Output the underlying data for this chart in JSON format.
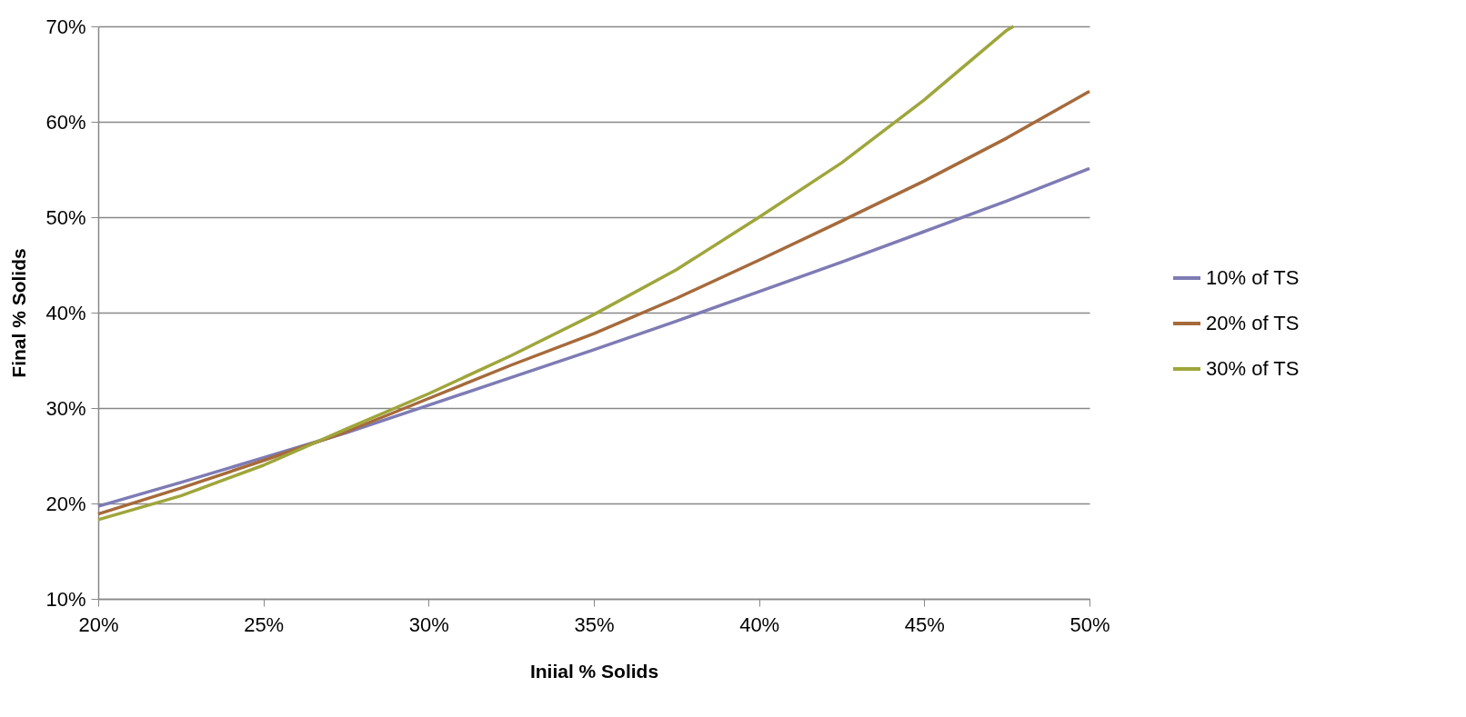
{
  "chart_data": {
    "type": "line",
    "xlabel": "Iniial % Solids",
    "ylabel": "Final % Solids",
    "x": [
      20,
      22.5,
      25,
      27.5,
      30,
      32.5,
      35,
      37.5,
      40,
      42.5,
      45,
      47.5,
      50
    ],
    "series": [
      {
        "name": "10% of TS",
        "color": "#7e7bb5",
        "values": [
          19.7,
          22.2,
          24.8,
          27.4,
          30.3,
          33.2,
          36.1,
          39.1,
          42.2,
          45.3,
          48.5,
          51.7,
          55.1
        ]
      },
      {
        "name": "20% of TS",
        "color": "#a66a3b",
        "values": [
          18.9,
          21.6,
          24.5,
          27.5,
          31.0,
          34.5,
          37.8,
          41.5,
          45.5,
          49.6,
          53.8,
          58.3,
          63.2
        ]
      },
      {
        "name": "30% of TS",
        "color": "#9fa63b",
        "x": [
          20,
          22.5,
          25,
          27.5,
          30,
          32.5,
          35,
          37.5,
          40,
          42.5,
          45,
          47.5,
          47.7
        ],
        "values": [
          18.3,
          20.8,
          24.0,
          27.8,
          31.5,
          35.5,
          39.8,
          44.5,
          50.0,
          55.7,
          62.3,
          69.6,
          70
        ]
      }
    ],
    "xlim": [
      20,
      50
    ],
    "ylim": [
      10,
      70
    ],
    "xticks": [
      {
        "value": 20,
        "label": "20%"
      },
      {
        "value": 25,
        "label": "25%"
      },
      {
        "value": 30,
        "label": "30%"
      },
      {
        "value": 35,
        "label": "35%"
      },
      {
        "value": 40,
        "label": "40%"
      },
      {
        "value": 45,
        "label": "45%"
      },
      {
        "value": 50,
        "label": "50%"
      }
    ],
    "yticks": [
      {
        "value": 10,
        "label": "10%"
      },
      {
        "value": 20,
        "label": "20%"
      },
      {
        "value": 30,
        "label": "30%"
      },
      {
        "value": 40,
        "label": "40%"
      },
      {
        "value": 50,
        "label": "50%"
      },
      {
        "value": 60,
        "label": "60%"
      },
      {
        "value": 70,
        "label": "70%"
      }
    ],
    "grid": "y",
    "legend": "right",
    "marker": "none",
    "line_style": "solid"
  }
}
